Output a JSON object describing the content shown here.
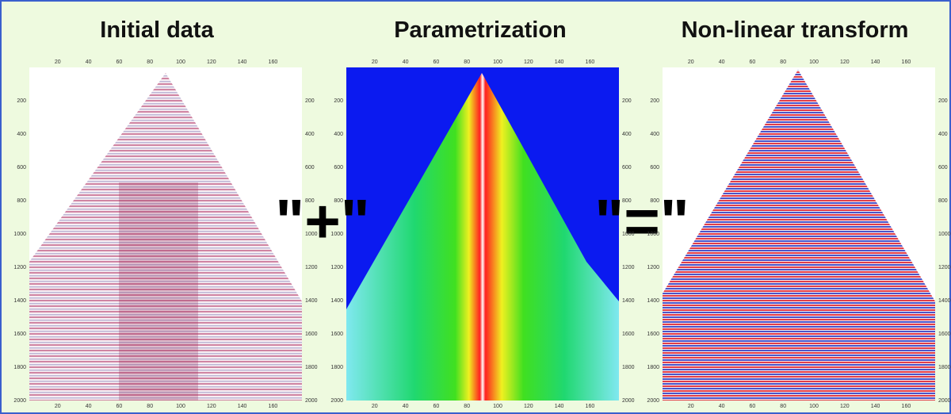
{
  "panels": [
    {
      "title": "Initial data",
      "x_ticks": [
        20,
        40,
        60,
        80,
        100,
        120,
        140,
        160
      ],
      "y_ticks": [
        200,
        400,
        600,
        800,
        1000,
        1200,
        1400,
        1600,
        1800,
        2000
      ]
    },
    {
      "title": "Parametrization",
      "x_ticks": [
        20,
        40,
        60,
        80,
        100,
        120,
        140,
        160
      ],
      "y_ticks": [
        200,
        400,
        600,
        800,
        1000,
        1200,
        1400,
        1600,
        1800,
        2000
      ]
    },
    {
      "title": "Non-linear transform",
      "x_ticks": [
        20,
        40,
        60,
        80,
        100,
        120,
        140,
        160
      ],
      "y_ticks": [
        200,
        400,
        600,
        800,
        1000,
        1200,
        1400,
        1600,
        1800,
        2000
      ]
    }
  ],
  "operators": [
    "\"+\"",
    "\"=\""
  ]
}
